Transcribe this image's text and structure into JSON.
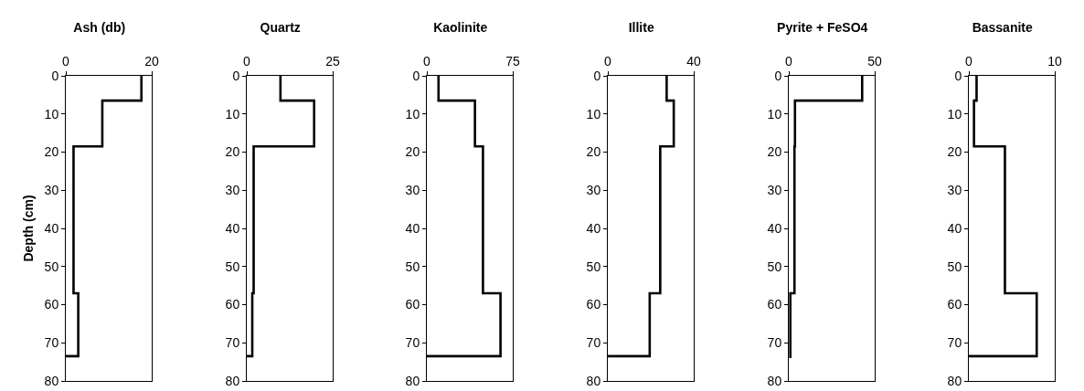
{
  "chart_data": [
    {
      "type": "line",
      "title": "Ash (db)",
      "ylabel": "Depth (cm)",
      "xlim": [
        0,
        20
      ],
      "xticks": [
        0,
        20
      ],
      "ylim": [
        80,
        0
      ],
      "yticks": [
        0,
        10,
        20,
        30,
        40,
        50,
        60,
        70,
        80
      ],
      "series": [
        {
          "color": "#000000",
          "x": [
            17.6,
            17.6,
            8.5,
            8.5,
            1.8,
            1.8,
            2.9,
            2.9,
            0
          ],
          "values": [
            0,
            6.5,
            6.5,
            18.5,
            18.5,
            57,
            57,
            73.5,
            73.5
          ]
        }
      ]
    },
    {
      "type": "line",
      "title": "Quartz",
      "xlim": [
        0,
        25
      ],
      "xticks": [
        0,
        25
      ],
      "ylim": [
        80,
        0
      ],
      "yticks": [
        0,
        10,
        20,
        30,
        40,
        50,
        60,
        70,
        80
      ],
      "series": [
        {
          "color": "#000000",
          "x": [
            9.8,
            9.8,
            19.6,
            19.6,
            2.0,
            2.0,
            1.6,
            1.6,
            0
          ],
          "values": [
            0,
            6.5,
            6.5,
            18.5,
            18.5,
            57,
            57,
            73.5,
            73.5
          ]
        }
      ]
    },
    {
      "type": "line",
      "title": "Kaolinite",
      "xlim": [
        0,
        75
      ],
      "xticks": [
        0,
        75
      ],
      "ylim": [
        80,
        0
      ],
      "yticks": [
        0,
        10,
        20,
        30,
        40,
        50,
        60,
        70,
        80
      ],
      "series": [
        {
          "color": "#000000",
          "x": [
            10.2,
            10.2,
            42,
            42,
            49,
            49,
            64.3,
            64.3,
            0
          ],
          "values": [
            0,
            6.5,
            6.5,
            18.5,
            18.5,
            57,
            57,
            73.5,
            73.5
          ]
        }
      ]
    },
    {
      "type": "line",
      "title": "Illite",
      "xlim": [
        0,
        40
      ],
      "xticks": [
        0,
        40
      ],
      "ylim": [
        80,
        0
      ],
      "yticks": [
        0,
        10,
        20,
        30,
        40,
        50,
        60,
        70,
        80
      ],
      "series": [
        {
          "color": "#000000",
          "x": [
            27.4,
            27.4,
            30.7,
            30.7,
            24.4,
            24.4,
            19.5,
            19.5,
            0
          ],
          "values": [
            0,
            6.5,
            6.5,
            18.5,
            18.5,
            57,
            57,
            73.5,
            73.5
          ]
        }
      ]
    },
    {
      "type": "line",
      "title": "Pyrite + FeSO4",
      "xlim": [
        0,
        50
      ],
      "xticks": [
        0,
        50
      ],
      "ylim": [
        80,
        0
      ],
      "yticks": [
        0,
        10,
        20,
        30,
        40,
        50,
        60,
        70,
        80
      ],
      "series": [
        {
          "color": "#000000",
          "x": [
            42.7,
            42.7,
            3.6,
            3.6,
            3.3,
            3.3,
            0.9,
            0.9
          ],
          "values": [
            0,
            6.5,
            6.5,
            18.5,
            18.5,
            57,
            57,
            74
          ]
        }
      ]
    },
    {
      "type": "line",
      "title": "Bassanite",
      "xlim": [
        0,
        10
      ],
      "xticks": [
        0,
        10
      ],
      "ylim": [
        80,
        0
      ],
      "yticks": [
        0,
        10,
        20,
        30,
        40,
        50,
        60,
        70,
        80
      ],
      "series": [
        {
          "color": "#000000",
          "x": [
            0.9,
            0.9,
            0.6,
            0.6,
            4.2,
            4.2,
            7.9,
            7.9,
            0
          ],
          "values": [
            0,
            6.5,
            6.5,
            18.5,
            18.5,
            57,
            57,
            73.5,
            73.5
          ]
        }
      ]
    }
  ]
}
